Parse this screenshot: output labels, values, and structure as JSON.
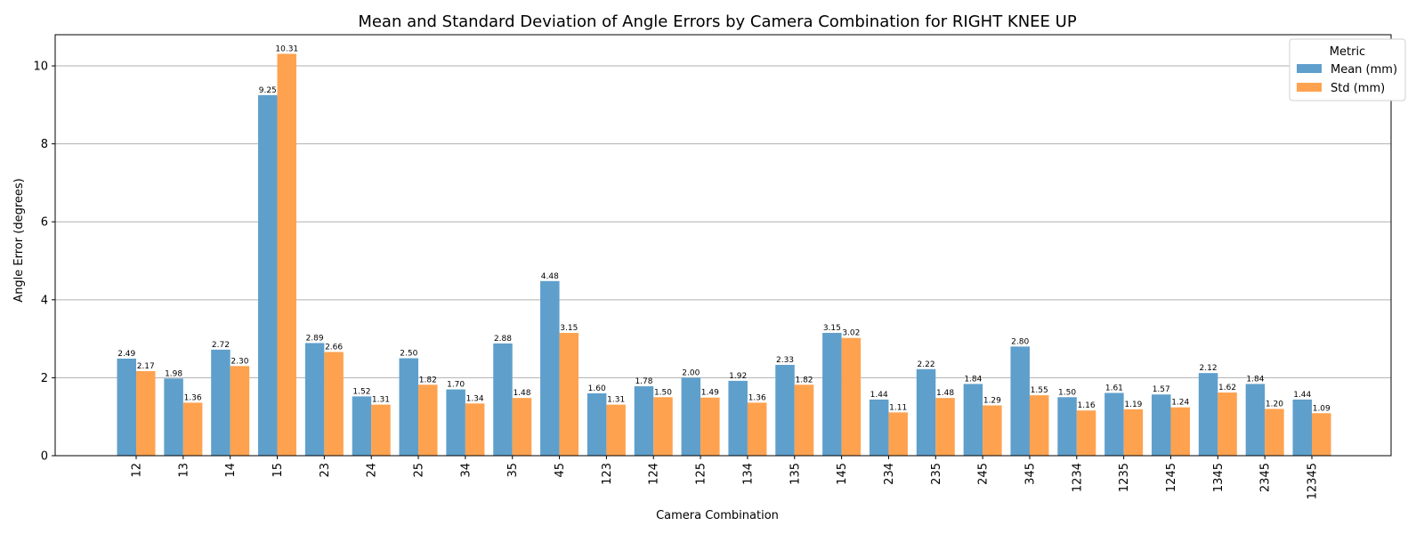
{
  "chart_data": {
    "type": "bar",
    "title": "Mean and Standard Deviation of Angle Errors by Camera Combination for RIGHT KNEE UP",
    "xlabel": "Camera Combination",
    "ylabel": "Angle Error (degrees)",
    "categories": [
      "12",
      "13",
      "14",
      "15",
      "23",
      "24",
      "25",
      "34",
      "35",
      "45",
      "123",
      "124",
      "125",
      "134",
      "135",
      "145",
      "234",
      "235",
      "245",
      "345",
      "1234",
      "1235",
      "1245",
      "1345",
      "2345",
      "12345"
    ],
    "series": [
      {
        "name": "Mean (mm)",
        "color": "#5f9fcc",
        "values": [
          2.49,
          1.98,
          2.72,
          9.25,
          2.89,
          1.52,
          2.5,
          1.7,
          2.88,
          4.48,
          1.6,
          1.78,
          2.0,
          1.92,
          2.33,
          3.15,
          1.44,
          2.22,
          1.84,
          2.8,
          1.5,
          1.61,
          1.57,
          2.12,
          1.84,
          1.44
        ]
      },
      {
        "name": "Std (mm)",
        "color": "#ffa24f",
        "values": [
          2.17,
          1.36,
          2.3,
          10.31,
          2.66,
          1.31,
          1.82,
          1.34,
          1.48,
          3.15,
          1.31,
          1.5,
          1.49,
          1.36,
          1.82,
          3.02,
          1.11,
          1.48,
          1.29,
          1.55,
          1.16,
          1.19,
          1.24,
          1.62,
          1.2,
          1.09
        ]
      }
    ],
    "data_labels": {
      "mean": [
        "2.49",
        "1.98",
        "2.72",
        "9.25",
        "2.89",
        "1.52",
        "2.50",
        "1.70",
        "2.88",
        "4.48",
        "1.60",
        "1.78",
        "2.00",
        "1.92",
        "2.33",
        "3.15",
        "1.44",
        "2.22",
        "1.84",
        "2.80",
        "1.50",
        "1.61",
        "1.57",
        "2.12",
        "1.84",
        "1.44"
      ],
      "std": [
        "2.17",
        "1.36",
        "2.30",
        "10.31",
        "2.66",
        "1.31",
        "1.82",
        "1.34",
        "1.48",
        "3.15",
        "1.31",
        "1.50",
        "1.49",
        "1.36",
        "1.82",
        "3.02",
        "1.11",
        "1.48",
        "1.29",
        "1.55",
        "1.16",
        "1.19",
        "1.24",
        "1.62",
        "1.20",
        "1.09"
      ]
    },
    "ylim": [
      0,
      10.8
    ],
    "yticks": [
      0,
      2,
      4,
      6,
      8,
      10
    ],
    "grid": "y",
    "legend": {
      "title": "Metric",
      "position": "top-right"
    }
  }
}
